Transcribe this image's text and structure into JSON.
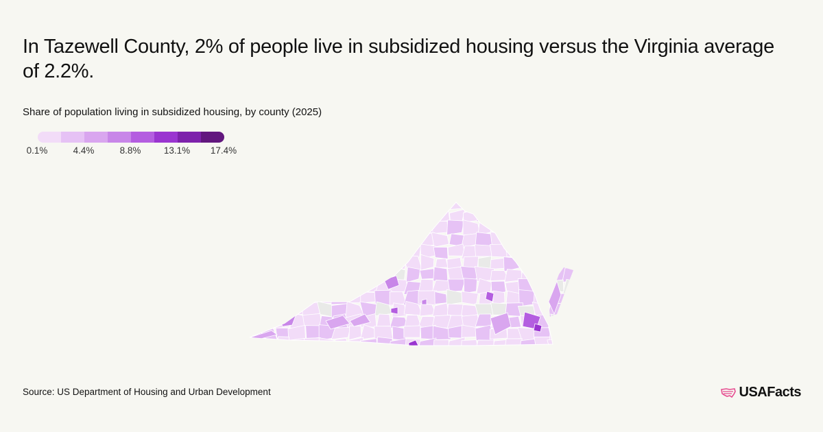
{
  "headline": "In Tazewell County, 2% of people live in subsidized housing versus the Virginia average of 2.2%.",
  "subtitle": "Share of population living in subsidized housing, by county (2025)",
  "legend": {
    "colors": [
      "#f2dcf8",
      "#e6c2f5",
      "#d9a6ef",
      "#c886e8",
      "#b45ee0",
      "#9a35d0",
      "#7d22ab",
      "#62177e"
    ],
    "ticks": [
      "0.1%",
      "4.4%",
      "8.8%",
      "13.1%",
      "17.4%"
    ]
  },
  "map": {
    "state": "Virginia",
    "no_data_color": "#e9eae8",
    "highlighted_county": "Tazewell County",
    "highlighted_value_percent": 2.0,
    "state_average_percent": 2.2
  },
  "source": "Source: US Department of Housing and Urban Development",
  "brand": {
    "name": "USAFacts",
    "accent": "#e64b8f"
  }
}
